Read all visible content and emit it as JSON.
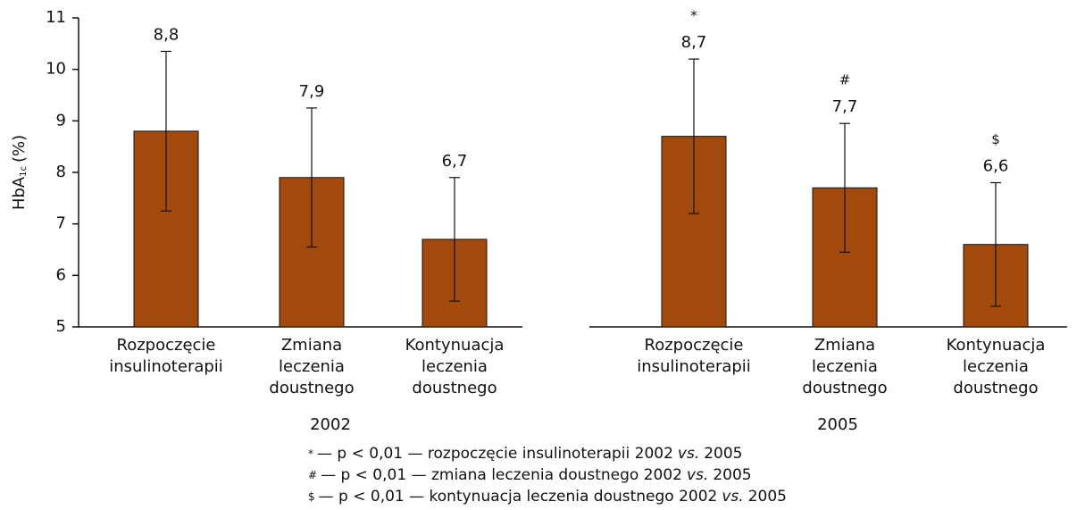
{
  "chart_data": [
    {
      "type": "bar",
      "year": "2002",
      "categories": [
        [
          "Rozpoczęcie",
          "insulinoterapii"
        ],
        [
          "Zmiana",
          "leczenia",
          "doustnego"
        ],
        [
          "Kontynuacja",
          "leczenia",
          "doustnego"
        ]
      ],
      "values": [
        8.8,
        7.9,
        6.7
      ],
      "value_labels": [
        "8,8",
        "7,9",
        "6,7"
      ],
      "errors": [
        1.55,
        1.35,
        1.2
      ],
      "color": "#a24a0b",
      "ylim": [
        5,
        11
      ],
      "yticks": [
        5,
        6,
        7,
        8,
        9,
        10,
        11
      ],
      "ylabel": [
        "HbA",
        "1c",
        "(%)"
      ],
      "show_yaxis": true
    },
    {
      "type": "bar",
      "year": "2005",
      "categories": [
        [
          "Rozpoczęcie",
          "insulinoterapii"
        ],
        [
          "Zmiana",
          "leczenia",
          "doustnego"
        ],
        [
          "Kontynuacja",
          "leczenia",
          "doustnego"
        ]
      ],
      "values": [
        8.7,
        7.7,
        6.6
      ],
      "value_labels": [
        "8,7",
        "7,7",
        "6,6"
      ],
      "errors": [
        1.5,
        1.25,
        1.2
      ],
      "markers": [
        "*",
        "#",
        "$"
      ],
      "color": "#a24a0b",
      "ylim": [
        5,
        11
      ],
      "show_yaxis": false
    }
  ],
  "footnotes": [
    {
      "symbol": "*",
      "text": "— p < 0,01 — rozpoczęcie insulinoterapii 2002",
      "italic": "vs.",
      "end": "2005"
    },
    {
      "symbol": "#",
      "text": "— p < 0,01 — zmiana leczenia doustnego 2002",
      "italic": "vs.",
      "end": "2005"
    },
    {
      "symbol": "$",
      "text": "— p < 0,01 — kontynuacja  leczenia doustnego 2002",
      "italic": "vs.",
      "end": "2005"
    }
  ]
}
